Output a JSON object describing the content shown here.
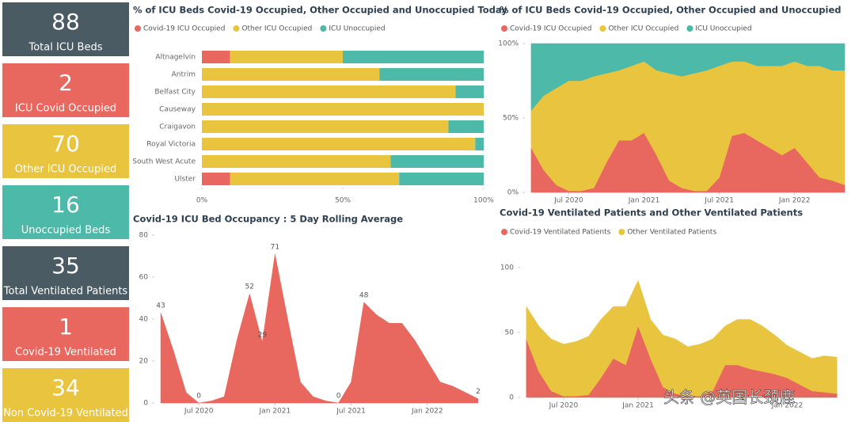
{
  "cards": [
    {
      "value": 88,
      "label": "Total ICU Beds",
      "color": "#4b5b64"
    },
    {
      "value": 2,
      "label": "ICU Covid Occupied",
      "color": "#e8675e"
    },
    {
      "value": 70,
      "label": "Other ICU Occupied",
      "color": "#e9c53f"
    },
    {
      "value": 16,
      "label": "Unoccupied Beds",
      "color": "#4dbaa9"
    },
    {
      "value": 35,
      "label": "Total Ventilated Patients",
      "color": "#4b5b64"
    },
    {
      "value": 1,
      "label": "Covid-19 Ventilated",
      "color": "#e8675e"
    },
    {
      "value": 34,
      "label": "Non Covid-19 Ventilated",
      "color": "#e9c53f"
    }
  ],
  "chart_data": [
    {
      "type": "bar",
      "orientation": "horizontal",
      "stacked": true,
      "title": "% of ICU Beds Covid-19 Occupied, Other Occupied and Unoccupied Today",
      "categories": [
        "Altnagelvin",
        "Antrim",
        "Belfast City",
        "Causeway",
        "Craigavon",
        "Royal Victoria",
        "South West Acute",
        "Ulster"
      ],
      "series": [
        {
          "name": "Covid-19 ICU Occupied",
          "color": "#e8675e",
          "values": [
            10,
            0,
            0,
            0,
            0,
            0,
            0,
            10
          ]
        },
        {
          "name": "Other ICU Occupied",
          "color": "#e9c53f",
          "values": [
            40,
            63,
            90,
            100,
            87.5,
            97,
            67,
            60
          ]
        },
        {
          "name": "ICU Unoccupied",
          "color": "#4dbaa9",
          "values": [
            50,
            37,
            10,
            0,
            12.5,
            3,
            33,
            30
          ]
        }
      ],
      "xlim": [
        0,
        100
      ],
      "xticks": [
        {
          "value": 0,
          "label": "0%"
        },
        {
          "value": 50,
          "label": "50%"
        },
        {
          "value": 100,
          "label": "100%"
        }
      ]
    },
    {
      "type": "area",
      "stacked": true,
      "title": "% of ICU Beds Covid-19 Occupied, Other Occupied and Unoccupied",
      "x": [
        "2020-04",
        "2020-05",
        "2020-06",
        "2020-07",
        "2020-08",
        "2020-09",
        "2020-10",
        "2020-11",
        "2020-12",
        "2021-01",
        "2021-02",
        "2021-03",
        "2021-04",
        "2021-05",
        "2021-06",
        "2021-07",
        "2021-08",
        "2021-09",
        "2021-10",
        "2021-11",
        "2021-12",
        "2022-01",
        "2022-02",
        "2022-03",
        "2022-04",
        "2022-05"
      ],
      "series": [
        {
          "name": "Covid-19 ICU Occupied",
          "color": "#e8675e",
          "values": [
            30,
            15,
            5,
            1,
            1,
            3,
            20,
            35,
            35,
            40,
            25,
            8,
            3,
            1,
            1,
            10,
            38,
            40,
            35,
            30,
            25,
            30,
            20,
            10,
            8,
            5
          ]
        },
        {
          "name": "Other ICU Occupied",
          "color": "#e9c53f",
          "values": [
            25,
            50,
            65,
            74,
            74,
            75,
            60,
            47,
            50,
            48,
            57,
            72,
            75,
            79,
            81,
            75,
            50,
            48,
            50,
            55,
            60,
            58,
            65,
            75,
            74,
            77
          ]
        },
        {
          "name": "ICU Unoccupied",
          "color": "#4dbaa9",
          "values": [
            45,
            35,
            30,
            25,
            25,
            22,
            20,
            18,
            15,
            12,
            18,
            20,
            22,
            20,
            18,
            15,
            12,
            12,
            15,
            15,
            15,
            12,
            15,
            15,
            18,
            18
          ]
        }
      ],
      "ylim": [
        0,
        100
      ],
      "yticks": [
        {
          "value": 0,
          "label": "0%"
        },
        {
          "value": 50,
          "label": "50%"
        },
        {
          "value": 100,
          "label": "100%"
        }
      ],
      "xticks": [
        {
          "value": "2020-07",
          "label": "Jul 2020"
        },
        {
          "value": "2021-01",
          "label": "Jan 2021"
        },
        {
          "value": "2021-07",
          "label": "Jul 2021"
        },
        {
          "value": "2022-01",
          "label": "Jan 2022"
        }
      ]
    },
    {
      "type": "area",
      "title": "Covid-19 ICU Bed Occupancy : 5 Day Rolling Average",
      "x": [
        "2020-04",
        "2020-05",
        "2020-06",
        "2020-07",
        "2020-08",
        "2020-09",
        "2020-10",
        "2020-11",
        "2020-12",
        "2021-01",
        "2021-02",
        "2021-03",
        "2021-04",
        "2021-05",
        "2021-06",
        "2021-07",
        "2021-08",
        "2021-09",
        "2021-10",
        "2021-11",
        "2021-12",
        "2022-01",
        "2022-02",
        "2022-03",
        "2022-04",
        "2022-05"
      ],
      "series": [
        {
          "color": "#e8675e",
          "values": [
            43,
            25,
            5,
            0,
            1,
            3,
            30,
            52,
            29,
            71,
            40,
            10,
            3,
            1,
            0,
            10,
            48,
            42,
            38,
            38,
            30,
            20,
            10,
            8,
            5,
            2
          ],
          "value_labels": [
            "43",
            null,
            null,
            "0",
            null,
            null,
            null,
            "52",
            "29",
            "71",
            null,
            null,
            null,
            null,
            "0",
            null,
            "48",
            null,
            null,
            null,
            null,
            null,
            null,
            null,
            null,
            "2"
          ]
        }
      ],
      "ylim": [
        0,
        80
      ],
      "yticks": [
        0,
        20,
        40,
        60,
        80
      ],
      "xticks": [
        {
          "value": "2020-07",
          "label": "Jul 2020"
        },
        {
          "value": "2021-01",
          "label": "Jan 2021"
        },
        {
          "value": "2021-07",
          "label": "Jul 2021"
        },
        {
          "value": "2022-01",
          "label": "Jan 2022"
        }
      ]
    },
    {
      "type": "area",
      "stacked": true,
      "title": "Covid-19 Ventilated Patients and Other Ventilated Patients",
      "x": [
        "2020-04",
        "2020-05",
        "2020-06",
        "2020-07",
        "2020-08",
        "2020-09",
        "2020-10",
        "2020-11",
        "2020-12",
        "2021-01",
        "2021-02",
        "2021-03",
        "2021-04",
        "2021-05",
        "2021-06",
        "2021-07",
        "2021-08",
        "2021-09",
        "2021-10",
        "2021-11",
        "2021-12",
        "2022-01",
        "2022-02",
        "2022-03",
        "2022-04",
        "2022-05"
      ],
      "series": [
        {
          "name": "Covid-19 Ventilated Patients",
          "color": "#e8675e",
          "values": [
            45,
            20,
            5,
            1,
            1,
            2,
            15,
            30,
            25,
            55,
            30,
            8,
            3,
            1,
            1,
            5,
            25,
            25,
            22,
            20,
            18,
            15,
            10,
            5,
            4,
            3
          ]
        },
        {
          "name": "Other Ventilated Patients",
          "color": "#e9c53f",
          "values": [
            25,
            35,
            40,
            40,
            42,
            45,
            45,
            40,
            45,
            35,
            30,
            40,
            42,
            38,
            40,
            40,
            30,
            35,
            38,
            35,
            30,
            25,
            25,
            25,
            28,
            28
          ]
        }
      ],
      "ylim": [
        0,
        120
      ],
      "yticks": [
        0,
        50,
        100
      ],
      "xticks": [
        {
          "value": "2020-07",
          "label": "Jul 2020"
        },
        {
          "value": "2021-01",
          "label": "Jan 2021"
        },
        {
          "value": "2022-01",
          "label": "Jan 2022"
        }
      ]
    }
  ],
  "watermark": "头条 @英国长颈鹿"
}
